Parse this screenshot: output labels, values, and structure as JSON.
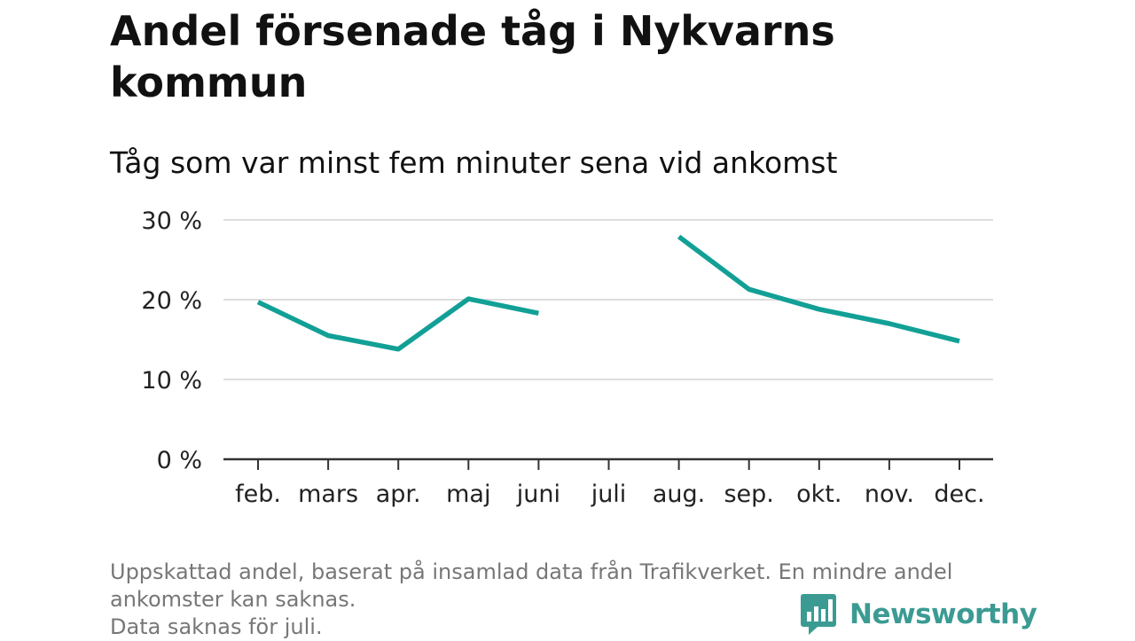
{
  "header": {
    "title": "Andel försenade tåg i Nykvarns kommun",
    "subtitle": "Tåg som var minst fem minuter sena vid ankomst"
  },
  "footnote": {
    "line1": "Uppskattad andel, baserat på insamlad data från Trafikverket. En mindre andel ankomster kan saknas.",
    "line2": "Data saknas för juli."
  },
  "brand": {
    "name": "Newsworthy",
    "icon": "newsworthy-bar-chart-icon",
    "color": "#3b9b93"
  },
  "chart_data": {
    "type": "line",
    "categories": [
      "feb.",
      "mars",
      "apr.",
      "maj",
      "juni",
      "juli",
      "aug.",
      "sep.",
      "okt.",
      "nov.",
      "dec."
    ],
    "series": [
      {
        "values": [
          19.7,
          15.5,
          13.8,
          20.1,
          18.3,
          null,
          27.9,
          21.3,
          18.8,
          17.0,
          14.8
        ],
        "color": "#12a096"
      }
    ],
    "ylim": [
      0,
      30
    ],
    "yticks": [
      0,
      10,
      20,
      30
    ],
    "ytick_labels": [
      "0 %",
      "10 %",
      "20 %",
      "30 %"
    ],
    "xlabel": "",
    "ylabel": "",
    "grid": true
  }
}
